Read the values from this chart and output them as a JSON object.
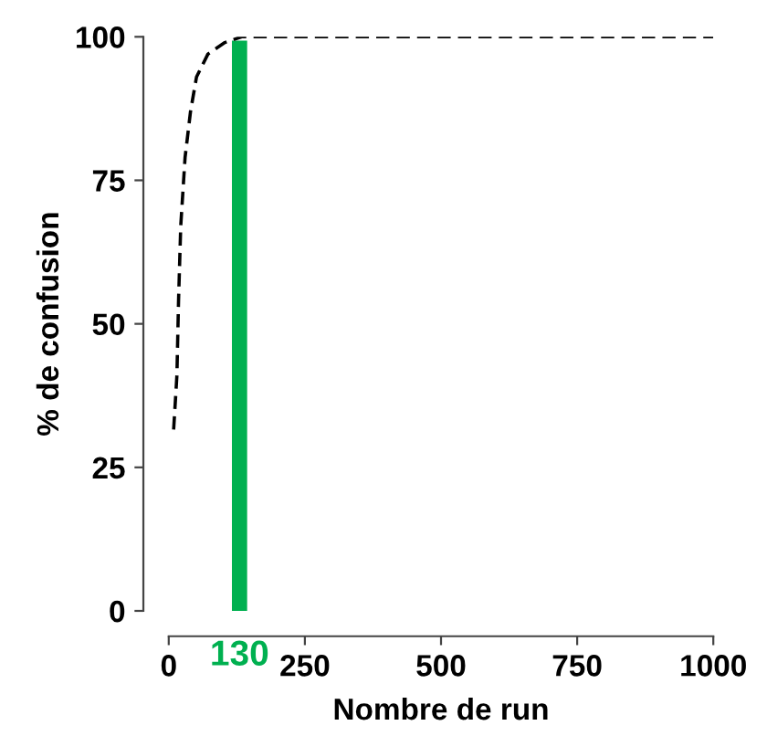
{
  "chart_data": {
    "type": "line",
    "xlabel": "Nombre de run",
    "ylabel": "% de confusion",
    "x": [
      9,
      15,
      18,
      22,
      30,
      40,
      51,
      72,
      103,
      134,
      1000
    ],
    "series": [
      {
        "color": "#000000",
        "values": [
          31.6,
          41,
          54,
          67,
          79,
          87,
          93,
          97,
          99,
          100,
          100
        ]
      }
    ],
    "line_style": "dashed",
    "marker": "none",
    "grid": false,
    "legend": false,
    "xlim": [
      0,
      1000
    ],
    "ylim": [
      0,
      100
    ],
    "xticks": [
      0,
      250,
      500,
      750,
      1000
    ],
    "yticks": [
      0,
      25,
      50,
      75,
      100
    ],
    "ref_lines": [
      {
        "axis": "x",
        "value": 130,
        "label": "130",
        "color": "#00b050"
      }
    ]
  }
}
